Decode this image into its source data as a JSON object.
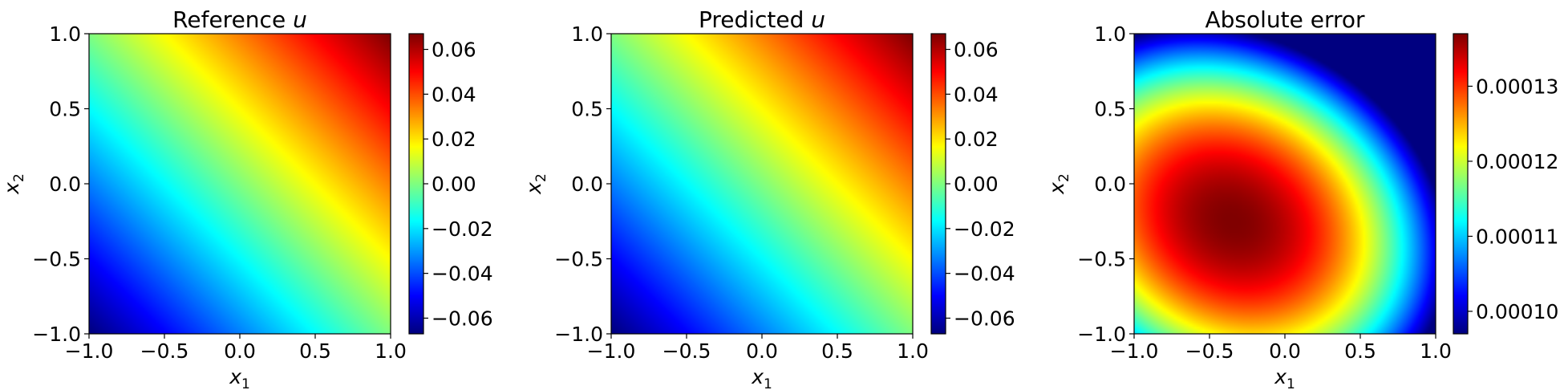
{
  "chart_data": [
    {
      "type": "heatmap",
      "title": "Reference u",
      "title_main": "Reference ",
      "title_var": "u",
      "xlabel": "x1",
      "ylabel": "x2",
      "xlabel_base": "x",
      "xlabel_sub": "1",
      "ylabel_base": "x",
      "ylabel_sub": "2",
      "xlim": [
        -1.0,
        1.0
      ],
      "ylim": [
        -1.0,
        1.0
      ],
      "xticks": [
        "−1.0",
        "−0.5",
        "0.0",
        "0.5",
        "1.0"
      ],
      "yticks": [
        "−1.0",
        "−0.5",
        "0.0",
        "0.5",
        "1.0"
      ],
      "colormap": "jet",
      "field": "linear gradient u ≈ 0.033·(x1 + x2)",
      "colorbar": {
        "range": [
          -0.067,
          0.067
        ],
        "ticks": [
          -0.06,
          -0.04,
          -0.02,
          0.0,
          0.02,
          0.04,
          0.06
        ],
        "tick_labels": [
          "−0.06",
          "−0.04",
          "−0.02",
          "0.00",
          "0.02",
          "0.04",
          "0.06"
        ]
      }
    },
    {
      "type": "heatmap",
      "title": "Predicted u",
      "title_main": "Predicted ",
      "title_var": "u",
      "xlabel": "x1",
      "ylabel": "x2",
      "xlabel_base": "x",
      "xlabel_sub": "1",
      "ylabel_base": "x",
      "ylabel_sub": "2",
      "xlim": [
        -1.0,
        1.0
      ],
      "ylim": [
        -1.0,
        1.0
      ],
      "xticks": [
        "−1.0",
        "−0.5",
        "0.0",
        "0.5",
        "1.0"
      ],
      "yticks": [
        "−1.0",
        "−0.5",
        "0.0",
        "0.5",
        "1.0"
      ],
      "colormap": "jet",
      "field": "linear gradient u ≈ 0.033·(x1 + x2)",
      "colorbar": {
        "range": [
          -0.067,
          0.067
        ],
        "ticks": [
          -0.06,
          -0.04,
          -0.02,
          0.0,
          0.02,
          0.04,
          0.06
        ],
        "tick_labels": [
          "−0.06",
          "−0.04",
          "−0.02",
          "0.00",
          "0.02",
          "0.04",
          "0.06"
        ]
      }
    },
    {
      "type": "heatmap",
      "title": "Absolute error",
      "title_main": "Absolute error",
      "title_var": "",
      "xlabel": "x1",
      "ylabel": "x2",
      "xlabel_base": "x",
      "xlabel_sub": "1",
      "ylabel_base": "x",
      "ylabel_sub": "2",
      "xlim": [
        -1.0,
        1.0
      ],
      "ylim": [
        -1.0,
        1.0
      ],
      "xticks": [
        "−1.0",
        "−0.5",
        "0.0",
        "0.5",
        "1.0"
      ],
      "yticks": [
        "−1.0",
        "−0.5",
        "0.0",
        "0.5",
        "1.0"
      ],
      "colormap": "jet",
      "field": "peak near (x1, x2) ≈ (-0.35, -0.25), decreasing toward (1, 1)",
      "colorbar": {
        "range": [
          9.7e-05,
          0.000137
        ],
        "ticks": [
          0.0001,
          0.00011,
          0.00012,
          0.00013
        ],
        "tick_labels": [
          "0.00010",
          "0.00011",
          "0.00012",
          "0.00013"
        ]
      }
    }
  ]
}
